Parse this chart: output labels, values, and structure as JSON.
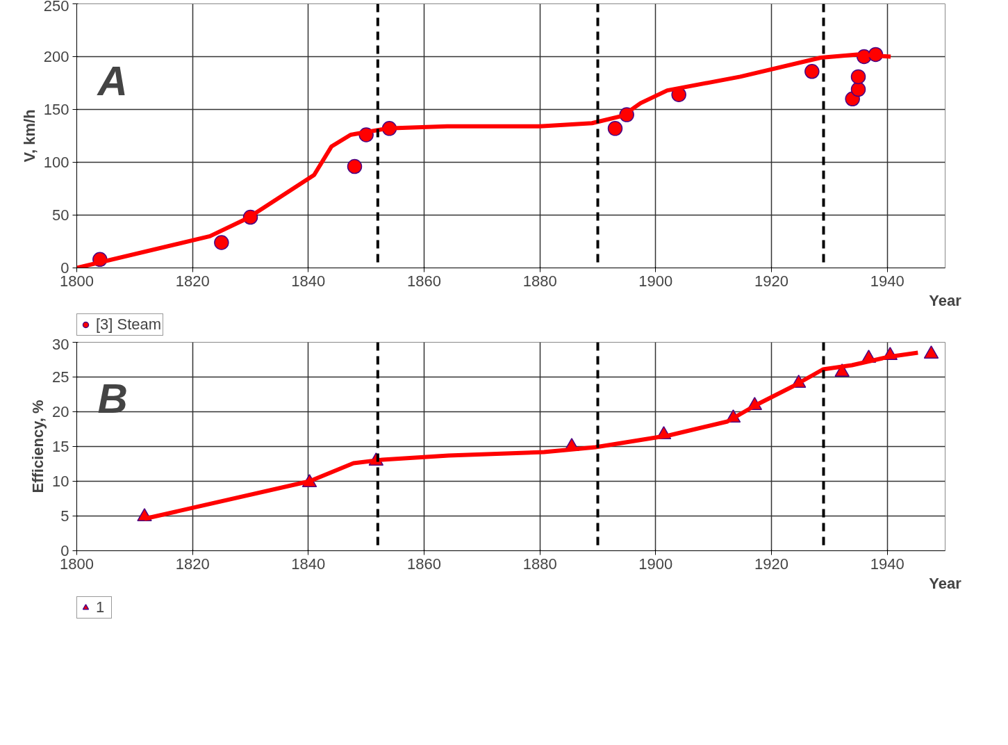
{
  "chart_data": [
    {
      "type": "scatter",
      "ylabel": "V, km/h",
      "xlabel": "Year",
      "annotations": [
        "A"
      ],
      "grid": true,
      "legend": "bottom left",
      "xlim": [
        1800,
        1950
      ],
      "xticks": [
        1800,
        1820,
        1840,
        1860,
        1880,
        1900,
        1920,
        1940
      ],
      "ylim": [
        0,
        250
      ],
      "yticks": [
        0,
        50,
        100,
        150,
        200,
        250
      ],
      "series": [
        {
          "name": "[3] Steam",
          "marker": "circle",
          "color": "#ff0000",
          "x": [
            1804,
            1825,
            1830,
            1848,
            1850,
            1854,
            1893,
            1895,
            1904,
            1927,
            1934,
            1935,
            1935,
            1936,
            1938
          ],
          "values": [
            8,
            24,
            48,
            96,
            126,
            132,
            132,
            145,
            164,
            186,
            160,
            169,
            181,
            200,
            202
          ]
        },
        {
          "type": "line",
          "line_style": "solid",
          "color": "#ff0000",
          "x": [
            1800,
            1823,
            1829.5,
            1841,
            1844,
            1847.3,
            1853.6,
            1864,
            1880,
            1889,
            1894.3,
            1897.4,
            1902,
            1914.6,
            1928.5,
            1934.8,
            1940.6
          ],
          "values": [
            0,
            30,
            47,
            88,
            115,
            126,
            132,
            134,
            134,
            137,
            144,
            156,
            168,
            181,
            199,
            202,
            200
          ]
        }
      ],
      "ref_lines": [
        {
          "axis": "x",
          "value": 1852,
          "color": "#000000",
          "line_style": "dashed"
        },
        {
          "axis": "x",
          "value": 1890,
          "color": "#000000",
          "line_style": "dashed"
        },
        {
          "axis": "x",
          "value": 1929,
          "color": "#000000",
          "line_style": "dashed"
        }
      ]
    },
    {
      "type": "scatter",
      "ylabel": "Efficiency, %",
      "xlabel": "Year",
      "annotations": [
        "B"
      ],
      "grid": true,
      "legend": "bottom left",
      "xlim": [
        1800,
        1950
      ],
      "xticks": [
        1800,
        1820,
        1840,
        1860,
        1880,
        1900,
        1920,
        1940
      ],
      "ylim": [
        0,
        30
      ],
      "yticks": [
        0,
        5,
        10,
        15,
        20,
        25,
        30
      ],
      "series": [
        {
          "name": "1",
          "marker": "triangle",
          "color": "#ff0000",
          "x": [
            1811.7,
            1840.2,
            1851.7,
            1885.5,
            1901.4,
            1913.4,
            1917.1,
            1924.7,
            1932.2,
            1936.8,
            1940.5,
            1947.6
          ],
          "values": [
            4.9,
            9.8,
            12.9,
            15.0,
            16.7,
            19.1,
            20.9,
            24.1,
            25.7,
            27.7,
            28.1,
            28.3
          ]
        },
        {
          "type": "line",
          "line_style": "solid",
          "color": "#ff0000",
          "x": [
            1811.7,
            1840.2,
            1844,
            1847.8,
            1852.8,
            1864.2,
            1880.7,
            1889.6,
            1902.3,
            1912.4,
            1917.4,
            1923.8,
            1928.9,
            1933.9,
            1940.2,
            1945.3
          ],
          "values": [
            4.6,
            10,
            11.3,
            12.6,
            13.1,
            13.7,
            14.2,
            14.9,
            16.6,
            18.6,
            21,
            23.7,
            26.1,
            26.7,
            27.9,
            28.5
          ]
        }
      ],
      "ref_lines": [
        {
          "axis": "x",
          "value": 1852,
          "color": "#000000",
          "line_style": "dashed"
        },
        {
          "axis": "x",
          "value": 1890,
          "color": "#000000",
          "line_style": "dashed"
        },
        {
          "axis": "x",
          "value": 1929,
          "color": "#000000",
          "line_style": "dashed"
        }
      ]
    }
  ]
}
